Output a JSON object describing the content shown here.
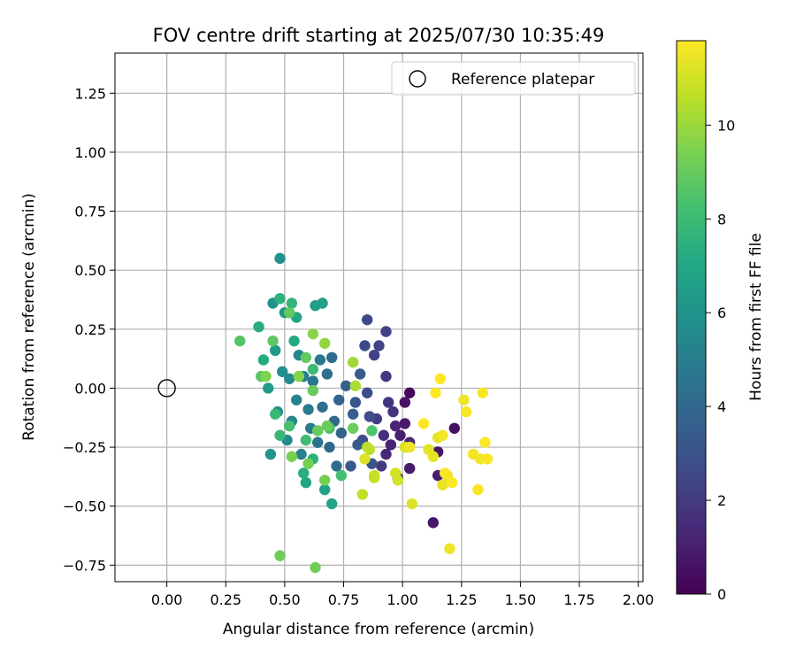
{
  "chart_data": {
    "type": "scatter",
    "title": "FOV centre drift starting at 2025/07/30 10:35:49",
    "xlabel": "Angular distance from reference (arcmin)",
    "ylabel": "Rotation from reference (arcmin)",
    "xlim": [
      -0.22,
      2.02
    ],
    "ylim": [
      -0.82,
      1.42
    ],
    "xticks": [
      "0.00",
      "0.25",
      "0.50",
      "0.75",
      "1.00",
      "1.25",
      "1.50",
      "1.75",
      "2.00"
    ],
    "xtick_values": [
      0,
      0.25,
      0.5,
      0.75,
      1.0,
      1.25,
      1.5,
      1.75,
      2.0
    ],
    "yticks": [
      "−0.75",
      "−0.50",
      "−0.25",
      "0.00",
      "0.25",
      "0.50",
      "0.75",
      "1.00",
      "1.25"
    ],
    "ytick_values": [
      -0.75,
      -0.5,
      -0.25,
      0,
      0.25,
      0.5,
      0.75,
      1.0,
      1.25
    ],
    "grid": true,
    "legend": {
      "position": "top-right",
      "entries": [
        "Reference platepar"
      ]
    },
    "reference_point": {
      "x": 0.0,
      "y": 0.0
    },
    "colorbar": {
      "label": "Hours from first FF file",
      "range": [
        0,
        11.8
      ],
      "ticks": [
        "0",
        "2",
        "4",
        "6",
        "8",
        "10"
      ],
      "tick_values": [
        0,
        2,
        4,
        6,
        8,
        10
      ],
      "colormap": "viridis"
    },
    "series": [
      {
        "colored_by": "hours",
        "points": [
          [
            1.03,
            -0.02,
            0.3
          ],
          [
            1.22,
            -0.17,
            0.5
          ],
          [
            1.13,
            -0.57,
            0.7
          ],
          [
            1.01,
            -0.06,
            0.6
          ],
          [
            1.01,
            -0.15,
            0.8
          ],
          [
            1.03,
            -0.34,
            0.9
          ],
          [
            1.15,
            -0.27,
            0.7
          ],
          [
            1.15,
            -0.37,
            0.9
          ],
          [
            0.99,
            -0.2,
            1.0
          ],
          [
            0.95,
            -0.24,
            1.1
          ],
          [
            0.97,
            -0.16,
            1.2
          ],
          [
            0.93,
            -0.28,
            1.3
          ],
          [
            1.03,
            -0.23,
            1.4
          ],
          [
            0.98,
            -0.38,
            1.5
          ],
          [
            0.92,
            -0.2,
            1.6
          ],
          [
            0.96,
            -0.1,
            1.7
          ],
          [
            0.94,
            -0.06,
            1.8
          ],
          [
            0.93,
            0.05,
            1.9
          ],
          [
            0.91,
            -0.33,
            2.0
          ],
          [
            0.89,
            -0.13,
            2.1
          ],
          [
            0.93,
            0.24,
            2.2
          ],
          [
            0.88,
            0.14,
            2.3
          ],
          [
            0.9,
            0.18,
            2.4
          ],
          [
            0.85,
            0.29,
            2.5
          ],
          [
            0.84,
            0.18,
            2.6
          ],
          [
            0.85,
            -0.02,
            2.7
          ],
          [
            0.86,
            -0.12,
            2.8
          ],
          [
            0.83,
            -0.22,
            2.9
          ],
          [
            0.87,
            -0.32,
            3.0
          ],
          [
            0.8,
            -0.06,
            3.1
          ],
          [
            0.78,
            -0.33,
            3.2
          ],
          [
            0.81,
            -0.24,
            3.3
          ],
          [
            0.82,
            0.06,
            3.4
          ],
          [
            0.79,
            -0.11,
            3.5
          ],
          [
            0.76,
            0.01,
            3.6
          ],
          [
            0.73,
            -0.05,
            3.7
          ],
          [
            0.74,
            -0.19,
            3.8
          ],
          [
            0.71,
            -0.14,
            3.9
          ],
          [
            0.69,
            -0.25,
            4.0
          ],
          [
            0.7,
            0.13,
            4.1
          ],
          [
            0.72,
            -0.33,
            4.2
          ],
          [
            0.68,
            0.06,
            4.3
          ],
          [
            0.66,
            -0.08,
            4.4
          ],
          [
            0.64,
            -0.23,
            4.5
          ],
          [
            0.62,
            0.03,
            4.6
          ],
          [
            0.65,
            0.12,
            4.7
          ],
          [
            0.61,
            -0.17,
            4.8
          ],
          [
            0.6,
            -0.09,
            4.9
          ],
          [
            0.58,
            0.05,
            5.0
          ],
          [
            0.57,
            -0.28,
            5.1
          ],
          [
            0.55,
            -0.05,
            5.2
          ],
          [
            0.56,
            0.14,
            5.3
          ],
          [
            0.53,
            -0.14,
            5.4
          ],
          [
            0.52,
            0.04,
            5.5
          ],
          [
            0.51,
            -0.22,
            5.6
          ],
          [
            0.49,
            0.07,
            5.7
          ],
          [
            0.47,
            -0.1,
            5.8
          ],
          [
            0.48,
            0.55,
            5.9
          ],
          [
            0.45,
            0.36,
            6.0
          ],
          [
            0.44,
            -0.28,
            6.1
          ],
          [
            0.5,
            0.32,
            6.2
          ],
          [
            0.46,
            0.16,
            6.3
          ],
          [
            0.43,
            0.0,
            6.4
          ],
          [
            0.63,
            0.35,
            6.5
          ],
          [
            0.66,
            0.36,
            6.6
          ],
          [
            0.67,
            -0.43,
            6.7
          ],
          [
            0.7,
            -0.49,
            6.8
          ],
          [
            0.59,
            -0.4,
            6.9
          ],
          [
            0.55,
            0.3,
            7.0
          ],
          [
            0.54,
            0.2,
            7.1
          ],
          [
            0.41,
            0.12,
            7.2
          ],
          [
            0.39,
            0.26,
            7.3
          ],
          [
            0.58,
            -0.36,
            7.4
          ],
          [
            0.62,
            -0.3,
            7.5
          ],
          [
            0.48,
            0.38,
            7.6
          ],
          [
            0.53,
            0.36,
            7.7
          ],
          [
            0.48,
            -0.2,
            7.8
          ],
          [
            0.46,
            -0.11,
            7.9
          ],
          [
            0.62,
            0.08,
            8.0
          ],
          [
            0.59,
            -0.22,
            8.1
          ],
          [
            0.74,
            -0.37,
            8.2
          ],
          [
            0.52,
            -0.16,
            8.3
          ],
          [
            0.69,
            -0.17,
            8.4
          ],
          [
            0.87,
            -0.18,
            8.5
          ],
          [
            0.31,
            0.2,
            8.6
          ],
          [
            0.4,
            0.05,
            8.7
          ],
          [
            0.45,
            0.2,
            8.8
          ],
          [
            0.52,
            0.32,
            8.9
          ],
          [
            0.59,
            0.13,
            8.9
          ],
          [
            0.62,
            -0.01,
            9.0
          ],
          [
            0.64,
            -0.18,
            9.0
          ],
          [
            0.68,
            -0.16,
            9.1
          ],
          [
            0.79,
            -0.17,
            9.1
          ],
          [
            0.63,
            -0.76,
            9.2
          ],
          [
            0.48,
            -0.71,
            9.2
          ],
          [
            0.67,
            -0.39,
            9.3
          ],
          [
            0.6,
            -0.32,
            9.3
          ],
          [
            0.53,
            -0.29,
            9.4
          ],
          [
            0.42,
            0.05,
            9.5
          ],
          [
            0.56,
            0.05,
            9.6
          ],
          [
            0.62,
            0.23,
            9.7
          ],
          [
            0.67,
            0.19,
            9.9
          ],
          [
            0.79,
            0.11,
            10.1
          ],
          [
            0.8,
            0.01,
            10.3
          ],
          [
            0.85,
            -0.25,
            10.5
          ],
          [
            0.83,
            -0.45,
            10.7
          ],
          [
            0.88,
            -0.38,
            10.9
          ],
          [
            0.98,
            -0.39,
            11.0
          ],
          [
            1.01,
            -0.25,
            11.1
          ],
          [
            1.04,
            -0.49,
            11.2
          ],
          [
            1.11,
            -0.26,
            11.3
          ],
          [
            1.15,
            -0.21,
            11.3
          ],
          [
            1.17,
            -0.41,
            11.4
          ],
          [
            1.19,
            -0.37,
            11.4
          ],
          [
            1.2,
            -0.68,
            11.5
          ],
          [
            1.26,
            -0.05,
            11.5
          ],
          [
            1.3,
            -0.28,
            11.6
          ],
          [
            1.33,
            -0.3,
            11.6
          ],
          [
            1.36,
            -0.3,
            11.7
          ],
          [
            1.32,
            -0.43,
            11.7
          ],
          [
            1.34,
            -0.02,
            11.7
          ],
          [
            1.09,
            -0.15,
            11.8
          ],
          [
            1.16,
            0.04,
            11.8
          ],
          [
            1.21,
            -0.4,
            11.8
          ],
          [
            1.35,
            -0.23,
            11.8
          ],
          [
            1.27,
            -0.1,
            11.7
          ],
          [
            1.17,
            -0.2,
            11.6
          ],
          [
            1.03,
            -0.25,
            11.5
          ],
          [
            0.84,
            -0.3,
            11.2
          ],
          [
            0.97,
            -0.36,
            11.0
          ],
          [
            0.88,
            -0.37,
            10.8
          ],
          [
            0.86,
            -0.26,
            10.6
          ],
          [
            1.14,
            -0.02,
            11.9
          ],
          [
            1.13,
            -0.29,
            11.4
          ],
          [
            1.18,
            -0.36,
            11.7
          ]
        ]
      }
    ]
  }
}
